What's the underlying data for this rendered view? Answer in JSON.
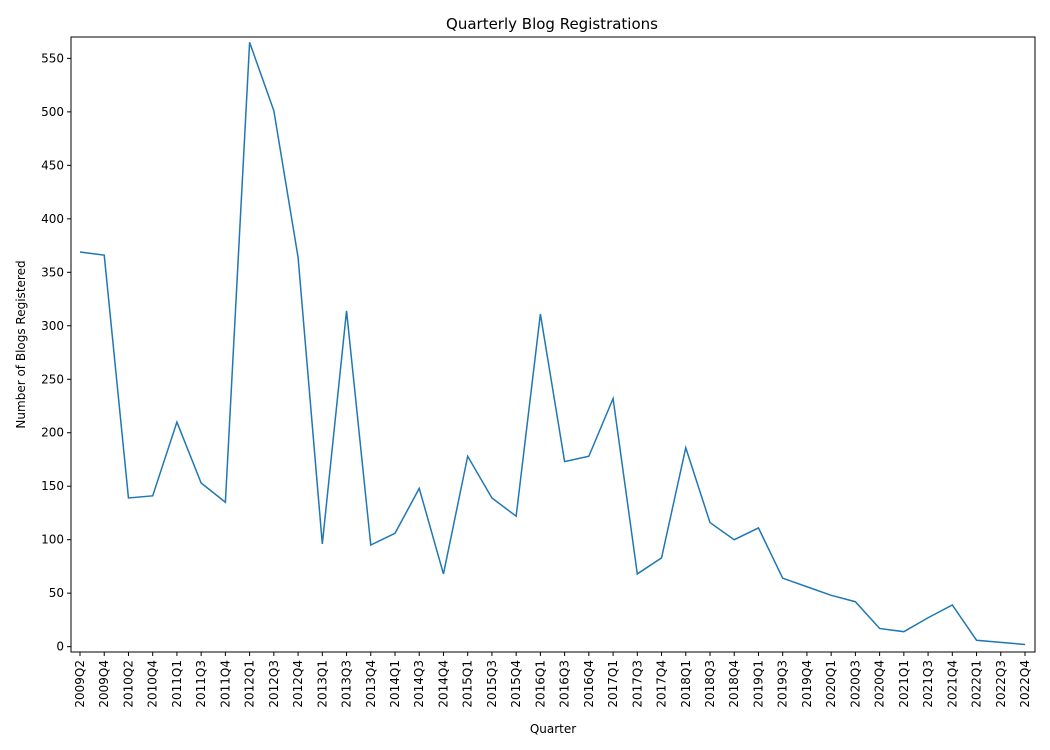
{
  "chart_data": {
    "type": "line",
    "title": "Quarterly Blog Registrations",
    "xlabel": "Quarter",
    "ylabel": "Number of Blogs Registered",
    "ylim": [
      -5,
      570
    ],
    "yticks": [
      0,
      50,
      100,
      150,
      200,
      250,
      300,
      350,
      400,
      450,
      500,
      550
    ],
    "grid": false,
    "line_color": "#1f77b4",
    "categories": [
      "2009Q2",
      "2009Q4",
      "2010Q2",
      "2010Q4",
      "2011Q1",
      "2011Q3",
      "2011Q4",
      "2012Q1",
      "2012Q3",
      "2012Q4",
      "2013Q1",
      "2013Q3",
      "2013Q4",
      "2014Q1",
      "2014Q3",
      "2014Q4",
      "2015Q1",
      "2015Q3",
      "2015Q4",
      "2016Q1",
      "2016Q3",
      "2016Q4",
      "2017Q1",
      "2017Q3",
      "2017Q4",
      "2018Q1",
      "2018Q3",
      "2018Q4",
      "2019Q1",
      "2019Q3",
      "2019Q4",
      "2020Q1",
      "2020Q3",
      "2020Q4",
      "2021Q1",
      "2021Q3",
      "2021Q4",
      "2022Q1",
      "2022Q3",
      "2022Q4"
    ],
    "values": [
      369,
      366,
      139,
      141,
      210,
      153,
      135,
      565,
      501,
      364,
      96,
      314,
      95,
      106,
      148,
      68,
      178,
      139,
      122,
      311,
      173,
      178,
      232,
      68,
      83,
      186,
      116,
      100,
      111,
      64,
      56,
      48,
      42,
      17,
      14,
      27,
      39,
      6,
      4,
      2
    ]
  }
}
